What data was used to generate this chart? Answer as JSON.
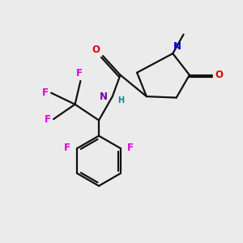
{
  "bg_color": "#ebebeb",
  "atom_colors": {
    "N_ring": "#0000dd",
    "N_amide": "#7700aa",
    "O": "#dd0000",
    "F": "#dd00dd",
    "H": "#008888"
  },
  "bond_color": "#111111",
  "bond_width": 1.6,
  "fs": 8.5,
  "fs_small": 7.0
}
